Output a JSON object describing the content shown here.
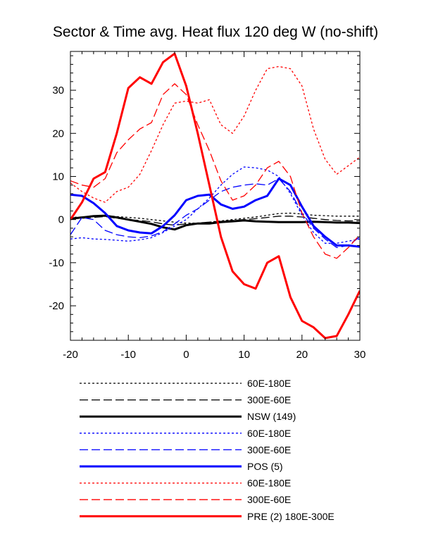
{
  "chart_data": {
    "type": "line",
    "title": "Sector & Time avg. Heat flux 120 deg W (no-shift)",
    "xlim": [
      -20,
      30
    ],
    "ylim": [
      -28,
      39
    ],
    "x_ticks": [
      -20,
      -10,
      0,
      10,
      20,
      30
    ],
    "y_ticks": [
      -20,
      -10,
      0,
      10,
      20,
      30
    ],
    "x_tick_labels": [
      "-20",
      "-10",
      "0",
      "10",
      "20",
      "30"
    ],
    "y_tick_labels": [
      "-20",
      "-10",
      "0",
      "10",
      "20",
      "30"
    ],
    "x": [
      -20,
      -18,
      -16,
      -14,
      -12,
      -10,
      -8,
      -6,
      -4,
      -2,
      0,
      2,
      4,
      6,
      8,
      10,
      12,
      14,
      16,
      18,
      20,
      22,
      24,
      26,
      28,
      30
    ],
    "series": [
      {
        "name": "60E-180E",
        "color": "#000000",
        "dash": "dot",
        "width": 1.3,
        "values": [
          0.5,
          0.6,
          0.8,
          0.9,
          0.7,
          0.5,
          0.3,
          0.0,
          -0.3,
          -0.6,
          -0.8,
          -0.8,
          -0.6,
          -0.3,
          0.0,
          0.3,
          0.6,
          1.0,
          1.4,
          1.5,
          1.3,
          1.0,
          0.9,
          0.8,
          0.8,
          0.8
        ]
      },
      {
        "name": "300E-60E",
        "color": "#000000",
        "dash": "dash",
        "width": 1.3,
        "values": [
          0.2,
          0.3,
          0.5,
          0.7,
          0.3,
          0.0,
          -0.2,
          -0.5,
          -1.0,
          -1.3,
          -1.0,
          -0.8,
          -0.6,
          -0.4,
          -0.2,
          0.0,
          0.2,
          0.5,
          0.8,
          0.8,
          0.6,
          0.3,
          0.0,
          -0.2,
          -0.3,
          -0.3
        ]
      },
      {
        "name": "NSW (149)",
        "color": "#000000",
        "dash": "solid",
        "width": 3,
        "values": [
          0.2,
          0.5,
          0.8,
          0.9,
          0.5,
          0.0,
          -0.5,
          -1.0,
          -1.8,
          -2.3,
          -1.3,
          -0.9,
          -0.9,
          -0.6,
          -0.4,
          -0.2,
          -0.4,
          -0.5,
          -0.6,
          -0.6,
          -0.6,
          -0.5,
          -0.6,
          -0.7,
          -0.7,
          -0.8
        ]
      },
      {
        "name": "60E-180E",
        "color": "#0000ff",
        "dash": "dot",
        "width": 1.3,
        "values": [
          -4.5,
          -4.2,
          -4.5,
          -4.6,
          -4.8,
          -5.0,
          -4.7,
          -4.2,
          -3.0,
          -1.5,
          0.0,
          2.5,
          5.0,
          8.0,
          10.5,
          12.2,
          12.0,
          11.5,
          10.0,
          6.0,
          1.0,
          -3.0,
          -5.5,
          -5.5,
          -5.0,
          -4.5
        ]
      },
      {
        "name": "300E-60E",
        "color": "#0000ff",
        "dash": "dash",
        "width": 1.3,
        "values": [
          -3.5,
          0.5,
          0.0,
          -2.5,
          -3.5,
          -4.0,
          -4.2,
          -3.8,
          -2.8,
          -1.0,
          1.0,
          2.5,
          4.5,
          6.5,
          7.5,
          8.0,
          8.3,
          8.0,
          9.5,
          6.5,
          1.5,
          -2.0,
          -4.5,
          -6.5,
          -6.0,
          -4.0
        ]
      },
      {
        "name": "POS (5)",
        "color": "#0000ff",
        "dash": "solid",
        "width": 3,
        "values": [
          5.8,
          5.5,
          3.8,
          1.5,
          -1.5,
          -2.5,
          -3.0,
          -3.2,
          -1.5,
          1.0,
          4.5,
          5.5,
          5.8,
          3.5,
          2.5,
          3.0,
          4.5,
          5.5,
          9.5,
          8.0,
          3.0,
          -1.5,
          -4.0,
          -6.0,
          -6.0,
          -6.3
        ]
      },
      {
        "name": "60E-180E",
        "color": "#ff0000",
        "dash": "dot",
        "width": 1.3,
        "values": [
          8.5,
          6.5,
          5.0,
          4.0,
          6.5,
          7.5,
          10.5,
          16.0,
          22.0,
          27.0,
          27.5,
          27.0,
          27.8,
          22.0,
          20.0,
          24.0,
          30.0,
          35.0,
          35.5,
          35.0,
          31.0,
          21.0,
          14.0,
          10.5,
          12.5,
          14.5
        ]
      },
      {
        "name": "300E-60E",
        "color": "#ff0000",
        "dash": "dash",
        "width": 1.3,
        "values": [
          9.0,
          8.0,
          7.5,
          9.5,
          15.5,
          18.5,
          21.0,
          22.5,
          29.0,
          31.5,
          29.0,
          22.0,
          16.0,
          9.0,
          4.5,
          5.5,
          8.0,
          12.0,
          13.5,
          10.0,
          1.5,
          -4.0,
          -8.0,
          -9.0,
          -6.5,
          -3.5
        ]
      },
      {
        "name": "PRE (2) 180E-300E",
        "color": "#ff0000",
        "dash": "solid",
        "width": 3,
        "values": [
          0.0,
          4.0,
          9.5,
          11.0,
          20.0,
          30.5,
          33.0,
          31.5,
          36.5,
          38.5,
          31.0,
          20.0,
          8.0,
          -4.0,
          -12.0,
          -15.0,
          -16.0,
          -10.0,
          -8.5,
          -18.0,
          -23.5,
          -25.0,
          -27.5,
          -27.0,
          -22.0,
          -16.5
        ]
      }
    ],
    "legend_placement": "below chart"
  }
}
